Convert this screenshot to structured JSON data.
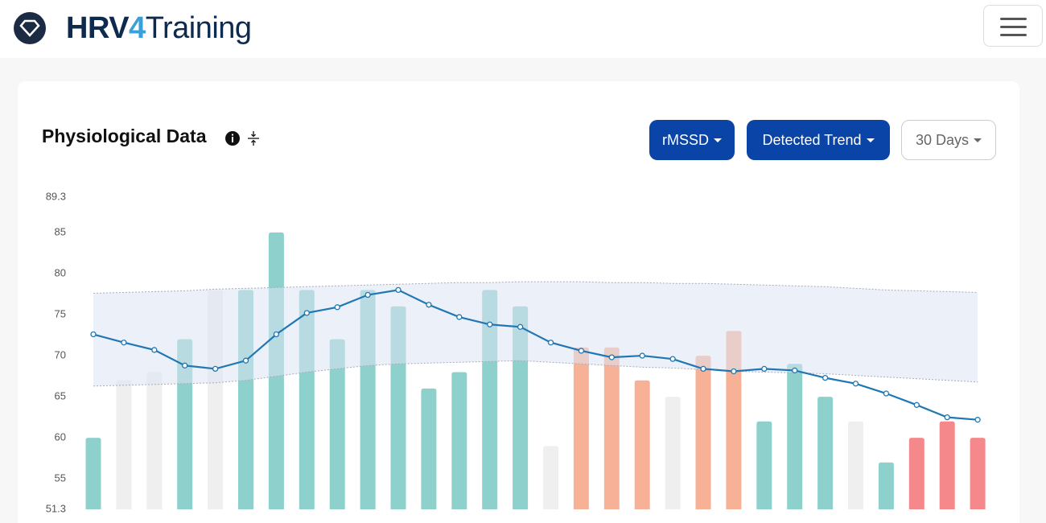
{
  "header": {
    "brand_parts": [
      "HRV",
      "4",
      "Training"
    ]
  },
  "card": {
    "title": "Physiological Data",
    "buttons": [
      "rMSSD",
      "Detected Trend",
      "30 Days"
    ]
  },
  "chart_data": {
    "type": "bar",
    "ylim": [
      51.3,
      89.3
    ],
    "yticks": [
      89.3,
      85,
      80,
      75,
      70,
      65,
      60,
      55,
      51.3
    ],
    "grid": false,
    "values": [
      60,
      67,
      68,
      72,
      78,
      78,
      85,
      78,
      72,
      78,
      76,
      66,
      68,
      78,
      76,
      59,
      71,
      71,
      67,
      65,
      70,
      73,
      62,
      69,
      65,
      62,
      57,
      60,
      62,
      60
    ],
    "colors": [
      "#8dd0cc",
      "#efefef",
      "#efefef",
      "#8dd0cc",
      "#efefef",
      "#8dd0cc",
      "#8dd0cc",
      "#8dd0cc",
      "#8dd0cc",
      "#8dd0cc",
      "#8dd0cc",
      "#8dd0cc",
      "#8dd0cc",
      "#8dd0cc",
      "#8dd0cc",
      "#efefef",
      "#f7b196",
      "#f7b196",
      "#f7b196",
      "#efefef",
      "#f7b196",
      "#f7b196",
      "#8dd0cc",
      "#8dd0cc",
      "#8dd0cc",
      "#efefef",
      "#8dd0cc",
      "#f4888a",
      "#f4888a",
      "#f4888a"
    ],
    "trend": {
      "color": "#1f77b4",
      "values": [
        72.6,
        71.6,
        70.7,
        68.8,
        68.4,
        69.4,
        72.6,
        75.2,
        75.9,
        77.4,
        78.0,
        76.2,
        74.7,
        73.8,
        73.5,
        71.6,
        70.6,
        69.8,
        70.0,
        69.6,
        68.4,
        68.1,
        68.4,
        68.2,
        67.3,
        66.6,
        65.4,
        64.0,
        62.5,
        62.2
      ]
    },
    "band": {
      "color": "#dde3f3",
      "upper": [
        77.6,
        77.7,
        77.8,
        77.9,
        78.1,
        78.2,
        78.3,
        78.4,
        78.5,
        78.6,
        78.7,
        78.8,
        78.9,
        78.9,
        79.0,
        79.0,
        79.0,
        78.9,
        78.9,
        78.8,
        78.8,
        78.7,
        78.6,
        78.5,
        78.4,
        78.2,
        78.0,
        77.9,
        77.8,
        77.7
      ],
      "lower": [
        66.3,
        66.4,
        66.5,
        66.6,
        66.7,
        67.0,
        67.5,
        68.0,
        68.4,
        68.8,
        69.0,
        69.1,
        69.2,
        69.3,
        69.4,
        69.2,
        69.0,
        68.8,
        68.6,
        68.5,
        68.3,
        68.1,
        68.0,
        67.9,
        67.8,
        67.6,
        67.4,
        67.2,
        67.0,
        66.8
      ]
    }
  }
}
